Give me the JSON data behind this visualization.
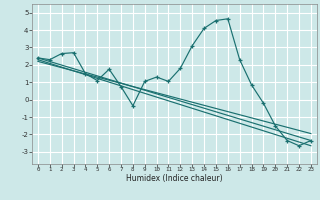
{
  "xlabel": "Humidex (Indice chaleur)",
  "bg_color": "#cde8e8",
  "grid_color": "#ffffff",
  "line_color": "#1a7070",
  "xlim": [
    -0.5,
    23.5
  ],
  "ylim": [
    -3.7,
    5.5
  ],
  "yticks": [
    -3,
    -2,
    -1,
    0,
    1,
    2,
    3,
    4,
    5
  ],
  "xticks": [
    0,
    1,
    2,
    3,
    4,
    5,
    6,
    7,
    8,
    9,
    10,
    11,
    12,
    13,
    14,
    15,
    16,
    17,
    18,
    19,
    20,
    21,
    22,
    23
  ],
  "data_x": [
    0,
    1,
    2,
    3,
    4,
    5,
    6,
    7,
    8,
    9,
    10,
    11,
    12,
    13,
    14,
    15,
    16,
    17,
    18,
    19,
    20,
    21,
    22,
    23
  ],
  "data_y": [
    2.4,
    2.3,
    2.65,
    2.7,
    1.5,
    1.1,
    1.75,
    0.75,
    -0.35,
    1.05,
    1.3,
    1.05,
    1.8,
    3.1,
    4.1,
    4.55,
    4.65,
    2.3,
    0.85,
    -0.2,
    -1.5,
    -2.35,
    -2.65,
    -2.35
  ],
  "trend1_x": [
    0,
    23
  ],
  "trend1_y": [
    2.4,
    -2.35
  ],
  "trend2_x": [
    0,
    23
  ],
  "trend2_y": [
    2.3,
    -2.65
  ],
  "trend3_x": [
    0,
    23
  ],
  "trend3_y": [
    2.2,
    -1.95
  ]
}
